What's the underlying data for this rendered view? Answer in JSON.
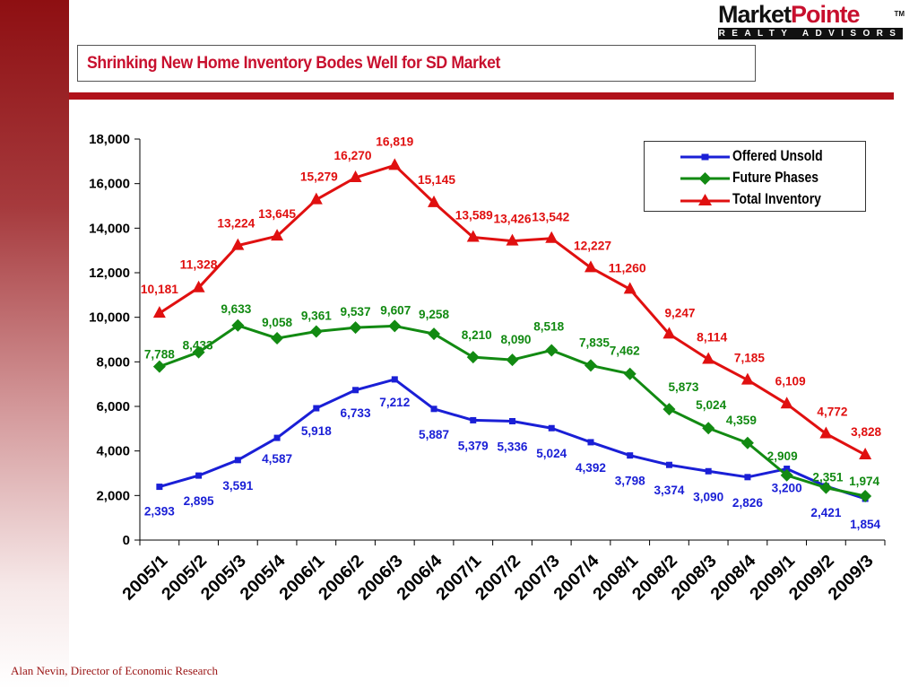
{
  "logo": {
    "word1": "Market",
    "word2": "Pointe",
    "tm": "TM",
    "subtitle": "REALTY ADVISORS"
  },
  "title": "Shrinking New Home Inventory Bodes Well for SD Market",
  "footer": "Alan Nevin, Director of Economic Research",
  "colors": {
    "accent_red": "#c8102e",
    "offered_unsold": "#1a1fd6",
    "future_phases": "#128a12",
    "total_inventory": "#e01010"
  },
  "chart_data": {
    "type": "line",
    "categories": [
      "2005/1",
      "2005/2",
      "2005/3",
      "2005/4",
      "2006/1",
      "2006/2",
      "2006/3",
      "2006/4",
      "2007/1",
      "2007/2",
      "2007/3",
      "2007/4",
      "2008/1",
      "2008/2",
      "2008/3",
      "2008/4",
      "2009/1",
      "2009/2",
      "2009/3"
    ],
    "ylim": [
      0,
      18000
    ],
    "yticks": [
      "0",
      "2,000",
      "4,000",
      "6,000",
      "8,000",
      "10,000",
      "12,000",
      "14,000",
      "16,000",
      "18,000"
    ],
    "legend_position": "top-right",
    "series": [
      {
        "name": "Offered Unsold",
        "marker": "square",
        "color": "#1a1fd6",
        "values": [
          2393,
          2895,
          3591,
          4587,
          5918,
          6733,
          7212,
          5887,
          5379,
          5336,
          5024,
          4392,
          3798,
          3374,
          3090,
          2826,
          3200,
          2421,
          1854
        ],
        "labels": [
          "2,393",
          "2,895",
          "3,591",
          "4,587",
          "5,918",
          "6,733",
          "7,212",
          "5,887",
          "5,379",
          "5,336",
          "5,024",
          "4,392",
          "3,798",
          "3,374",
          "3,090",
          "2,826",
          "3,200",
          "2,421",
          "1,854"
        ]
      },
      {
        "name": "Future Phases",
        "marker": "diamond",
        "color": "#128a12",
        "values": [
          7788,
          8433,
          9633,
          9058,
          9361,
          9537,
          9607,
          9258,
          8210,
          8090,
          8518,
          7835,
          7462,
          5873,
          5024,
          4359,
          2909,
          2351,
          1974
        ],
        "labels": [
          "7,788",
          "8,433",
          "9,633",
          "9,058",
          "9,361",
          "9,537",
          "9,607",
          "9,258",
          "8,210",
          "8,090",
          "8,518",
          "7,835",
          "7,462",
          "5,873",
          "5,024",
          "4,359",
          "2,909",
          "2,351",
          "1,974"
        ]
      },
      {
        "name": "Total Inventory",
        "marker": "triangle",
        "color": "#e01010",
        "values": [
          10181,
          11328,
          13224,
          13645,
          15279,
          16270,
          16819,
          15145,
          13589,
          13426,
          13542,
          12227,
          11260,
          9247,
          8114,
          7185,
          6109,
          4772,
          3828
        ],
        "labels": [
          "10,181",
          "11,328",
          "13,224",
          "13,645",
          "15,279",
          "16,270",
          "16,819",
          "15,145",
          "13,589",
          "13,426",
          "13,542",
          "12,227",
          "11,260",
          "9,247",
          "8,114",
          "7,185",
          "6,109",
          "4,772",
          "3,828"
        ]
      }
    ]
  }
}
